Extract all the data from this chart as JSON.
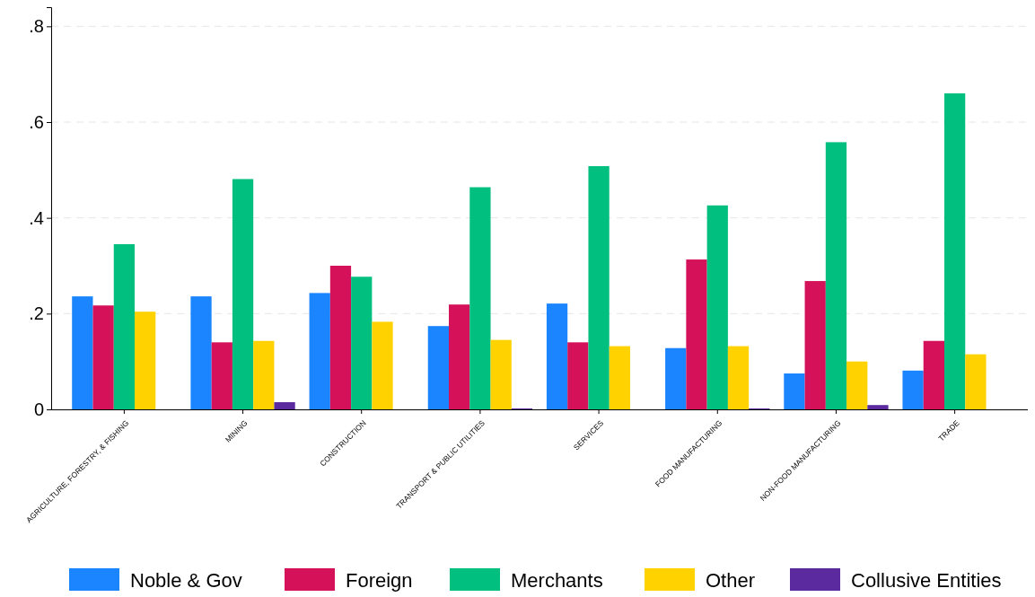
{
  "chart_data": {
    "type": "bar",
    "categories": [
      "AGRICULTURE, FORESTRY, & FISHING",
      "MINING",
      "CONSTRUCTION",
      "TRANSPORT & PUBLIC UTILITIES",
      "SERVICES",
      "FOOD MANUFACTURING",
      "NON-FOOD MANUFACTURING",
      "TRADE"
    ],
    "series": [
      {
        "name": "Noble & Gov",
        "color": "#1a85ff",
        "values": [
          0.236,
          0.236,
          0.243,
          0.174,
          0.221,
          0.128,
          0.075,
          0.081
        ]
      },
      {
        "name": "Foreign",
        "color": "#d41159",
        "values": [
          0.217,
          0.14,
          0.3,
          0.219,
          0.14,
          0.313,
          0.268,
          0.143
        ]
      },
      {
        "name": "Merchants",
        "color": "#00bf7f",
        "values": [
          0.345,
          0.481,
          0.277,
          0.464,
          0.508,
          0.426,
          0.558,
          0.66
        ]
      },
      {
        "name": "Other",
        "color": "#ffd200",
        "values": [
          0.204,
          0.143,
          0.183,
          0.145,
          0.132,
          0.132,
          0.1,
          0.115
        ]
      },
      {
        "name": "Collusive Entities",
        "color": "#5a2a9e",
        "values": [
          null,
          0.015,
          null,
          0.002,
          null,
          0.002,
          0.009,
          null
        ]
      }
    ],
    "ylim": [
      0,
      0.84
    ],
    "yticks": [
      {
        "value": 0,
        "label": "0"
      },
      {
        "value": 0.2,
        "label": ".2"
      },
      {
        "value": 0.4,
        "label": ".4"
      },
      {
        "value": 0.6,
        "label": ".6"
      },
      {
        "value": 0.8,
        "label": ".8"
      }
    ],
    "grid": "y",
    "legend": "bottom"
  }
}
